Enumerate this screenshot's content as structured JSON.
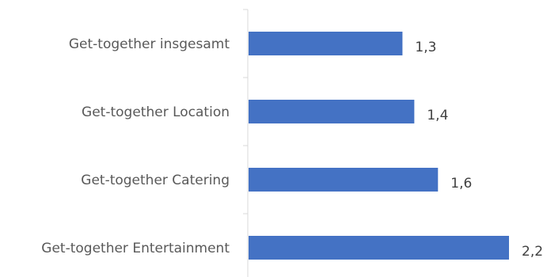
{
  "chart_data": {
    "type": "bar",
    "orientation": "horizontal",
    "categories": [
      "Get-together insgesamt",
      "Get-together Location",
      "Get-together Catering",
      "Get-together Entertainment"
    ],
    "values": [
      1.3,
      1.4,
      1.6,
      2.2
    ],
    "value_labels": [
      "1,3",
      "1,4",
      "1,6",
      "2,2"
    ],
    "bar_color": "#4472c4",
    "axis_color": "#d9d9d9",
    "xlim": [
      0,
      2.2
    ],
    "grid": false,
    "legend": "none"
  }
}
